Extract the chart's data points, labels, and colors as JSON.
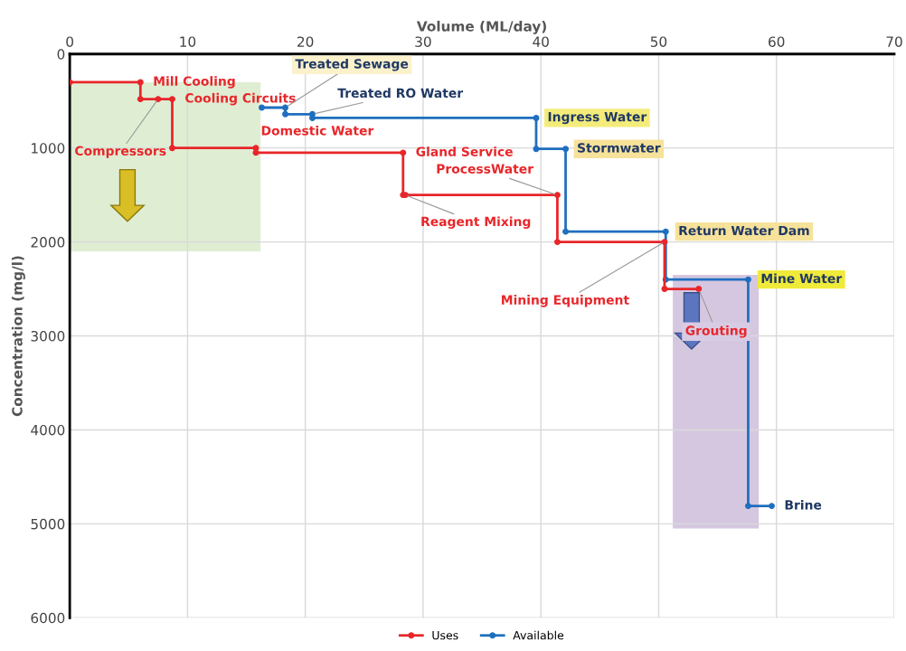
{
  "chart_data": {
    "type": "line",
    "xlabel": "Volume (ML/day)",
    "ylabel": "Concentration (mg/l)",
    "xlim": [
      0,
      70
    ],
    "xticks": [
      0,
      10,
      20,
      30,
      40,
      50,
      60,
      70
    ],
    "ylim": [
      6000,
      0
    ],
    "yticks": [
      0,
      1000,
      2000,
      3000,
      4000,
      5000,
      6000
    ],
    "grid": true,
    "legend": "bottom",
    "marker": "circle",
    "line_style": "solid",
    "series": [
      {
        "name": "Uses",
        "color": "#e8262a",
        "x": [
          0,
          6.0,
          6.0,
          7.5,
          8.7,
          8.7,
          15.8,
          15.8,
          28.3,
          28.3,
          28.5,
          41.4,
          41.4,
          50.5,
          50.5,
          53.4
        ],
        "values": [
          300,
          300,
          480,
          480,
          480,
          1000,
          1000,
          1050,
          1050,
          1500,
          1500,
          1500,
          2000,
          2000,
          2500,
          2500
        ]
      },
      {
        "name": "Available",
        "color": "#1f6fbf",
        "x": [
          16.3,
          18.3,
          18.3,
          20.6,
          20.6,
          39.6,
          39.6,
          42.1,
          42.1,
          50.6,
          50.6,
          57.6,
          57.6,
          59.6
        ],
        "values": [
          570,
          570,
          640,
          640,
          680,
          680,
          1010,
          1010,
          1890,
          1890,
          2400,
          2400,
          4810,
          4810
        ]
      }
    ],
    "annotations": [
      {
        "text": "Mill Cooling",
        "x": 6.0,
        "y": 300
      },
      {
        "text": "Compressors",
        "x": 7.5,
        "y": 480
      },
      {
        "text": "Cooling Circuits",
        "x": 8.7,
        "y": 480
      },
      {
        "text": "Domestic Water",
        "x": 15.8,
        "y": 1000
      },
      {
        "text": "Treated Sewage",
        "x": 18.3,
        "y": 570
      },
      {
        "text": "Treated RO Water",
        "x": 20.6,
        "y": 640
      },
      {
        "text": "Ingress Water",
        "x": 39.6,
        "y": 680
      },
      {
        "text": "Stormwater",
        "x": 42.1,
        "y": 1010
      },
      {
        "text": "Gland Service",
        "x": 28.3,
        "y": 1050
      },
      {
        "text": "Reagent Mixing",
        "x": 28.5,
        "y": 1500
      },
      {
        "text": "ProcessWater",
        "x": 41.4,
        "y": 1500
      },
      {
        "text": "Return Water Dam",
        "x": 50.6,
        "y": 1890
      },
      {
        "text": "Mining Equipment",
        "x": 50.5,
        "y": 2000
      },
      {
        "text": "Mine Water",
        "x": 57.6,
        "y": 2400
      },
      {
        "text": "Grouting",
        "x": 53.4,
        "y": 2500
      },
      {
        "text": "Brine",
        "x": 59.6,
        "y": 4810
      }
    ]
  }
}
